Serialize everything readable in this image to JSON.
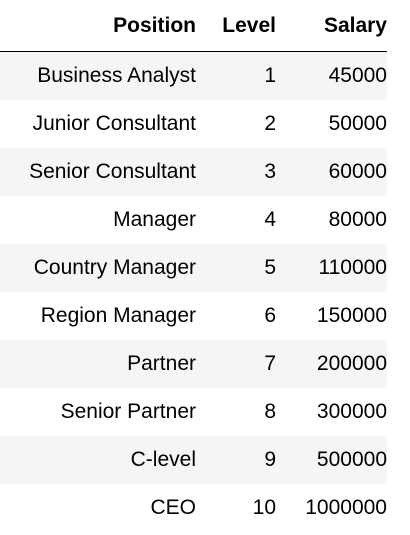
{
  "table": {
    "headers": [
      "Position",
      "Level",
      "Salary"
    ],
    "rows": [
      {
        "position": "Business Analyst",
        "level": "1",
        "salary": "45000"
      },
      {
        "position": "Junior Consultant",
        "level": "2",
        "salary": "50000"
      },
      {
        "position": "Senior Consultant",
        "level": "3",
        "salary": "60000"
      },
      {
        "position": "Manager",
        "level": "4",
        "salary": "80000"
      },
      {
        "position": "Country Manager",
        "level": "5",
        "salary": "110000"
      },
      {
        "position": "Region Manager",
        "level": "6",
        "salary": "150000"
      },
      {
        "position": "Partner",
        "level": "7",
        "salary": "200000"
      },
      {
        "position": "Senior Partner",
        "level": "8",
        "salary": "300000"
      },
      {
        "position": "C-level",
        "level": "9",
        "salary": "500000"
      },
      {
        "position": "CEO",
        "level": "10",
        "salary": "1000000"
      }
    ]
  },
  "colors": {
    "stripe": "#f5f5f5",
    "header_rule": "#000000"
  }
}
